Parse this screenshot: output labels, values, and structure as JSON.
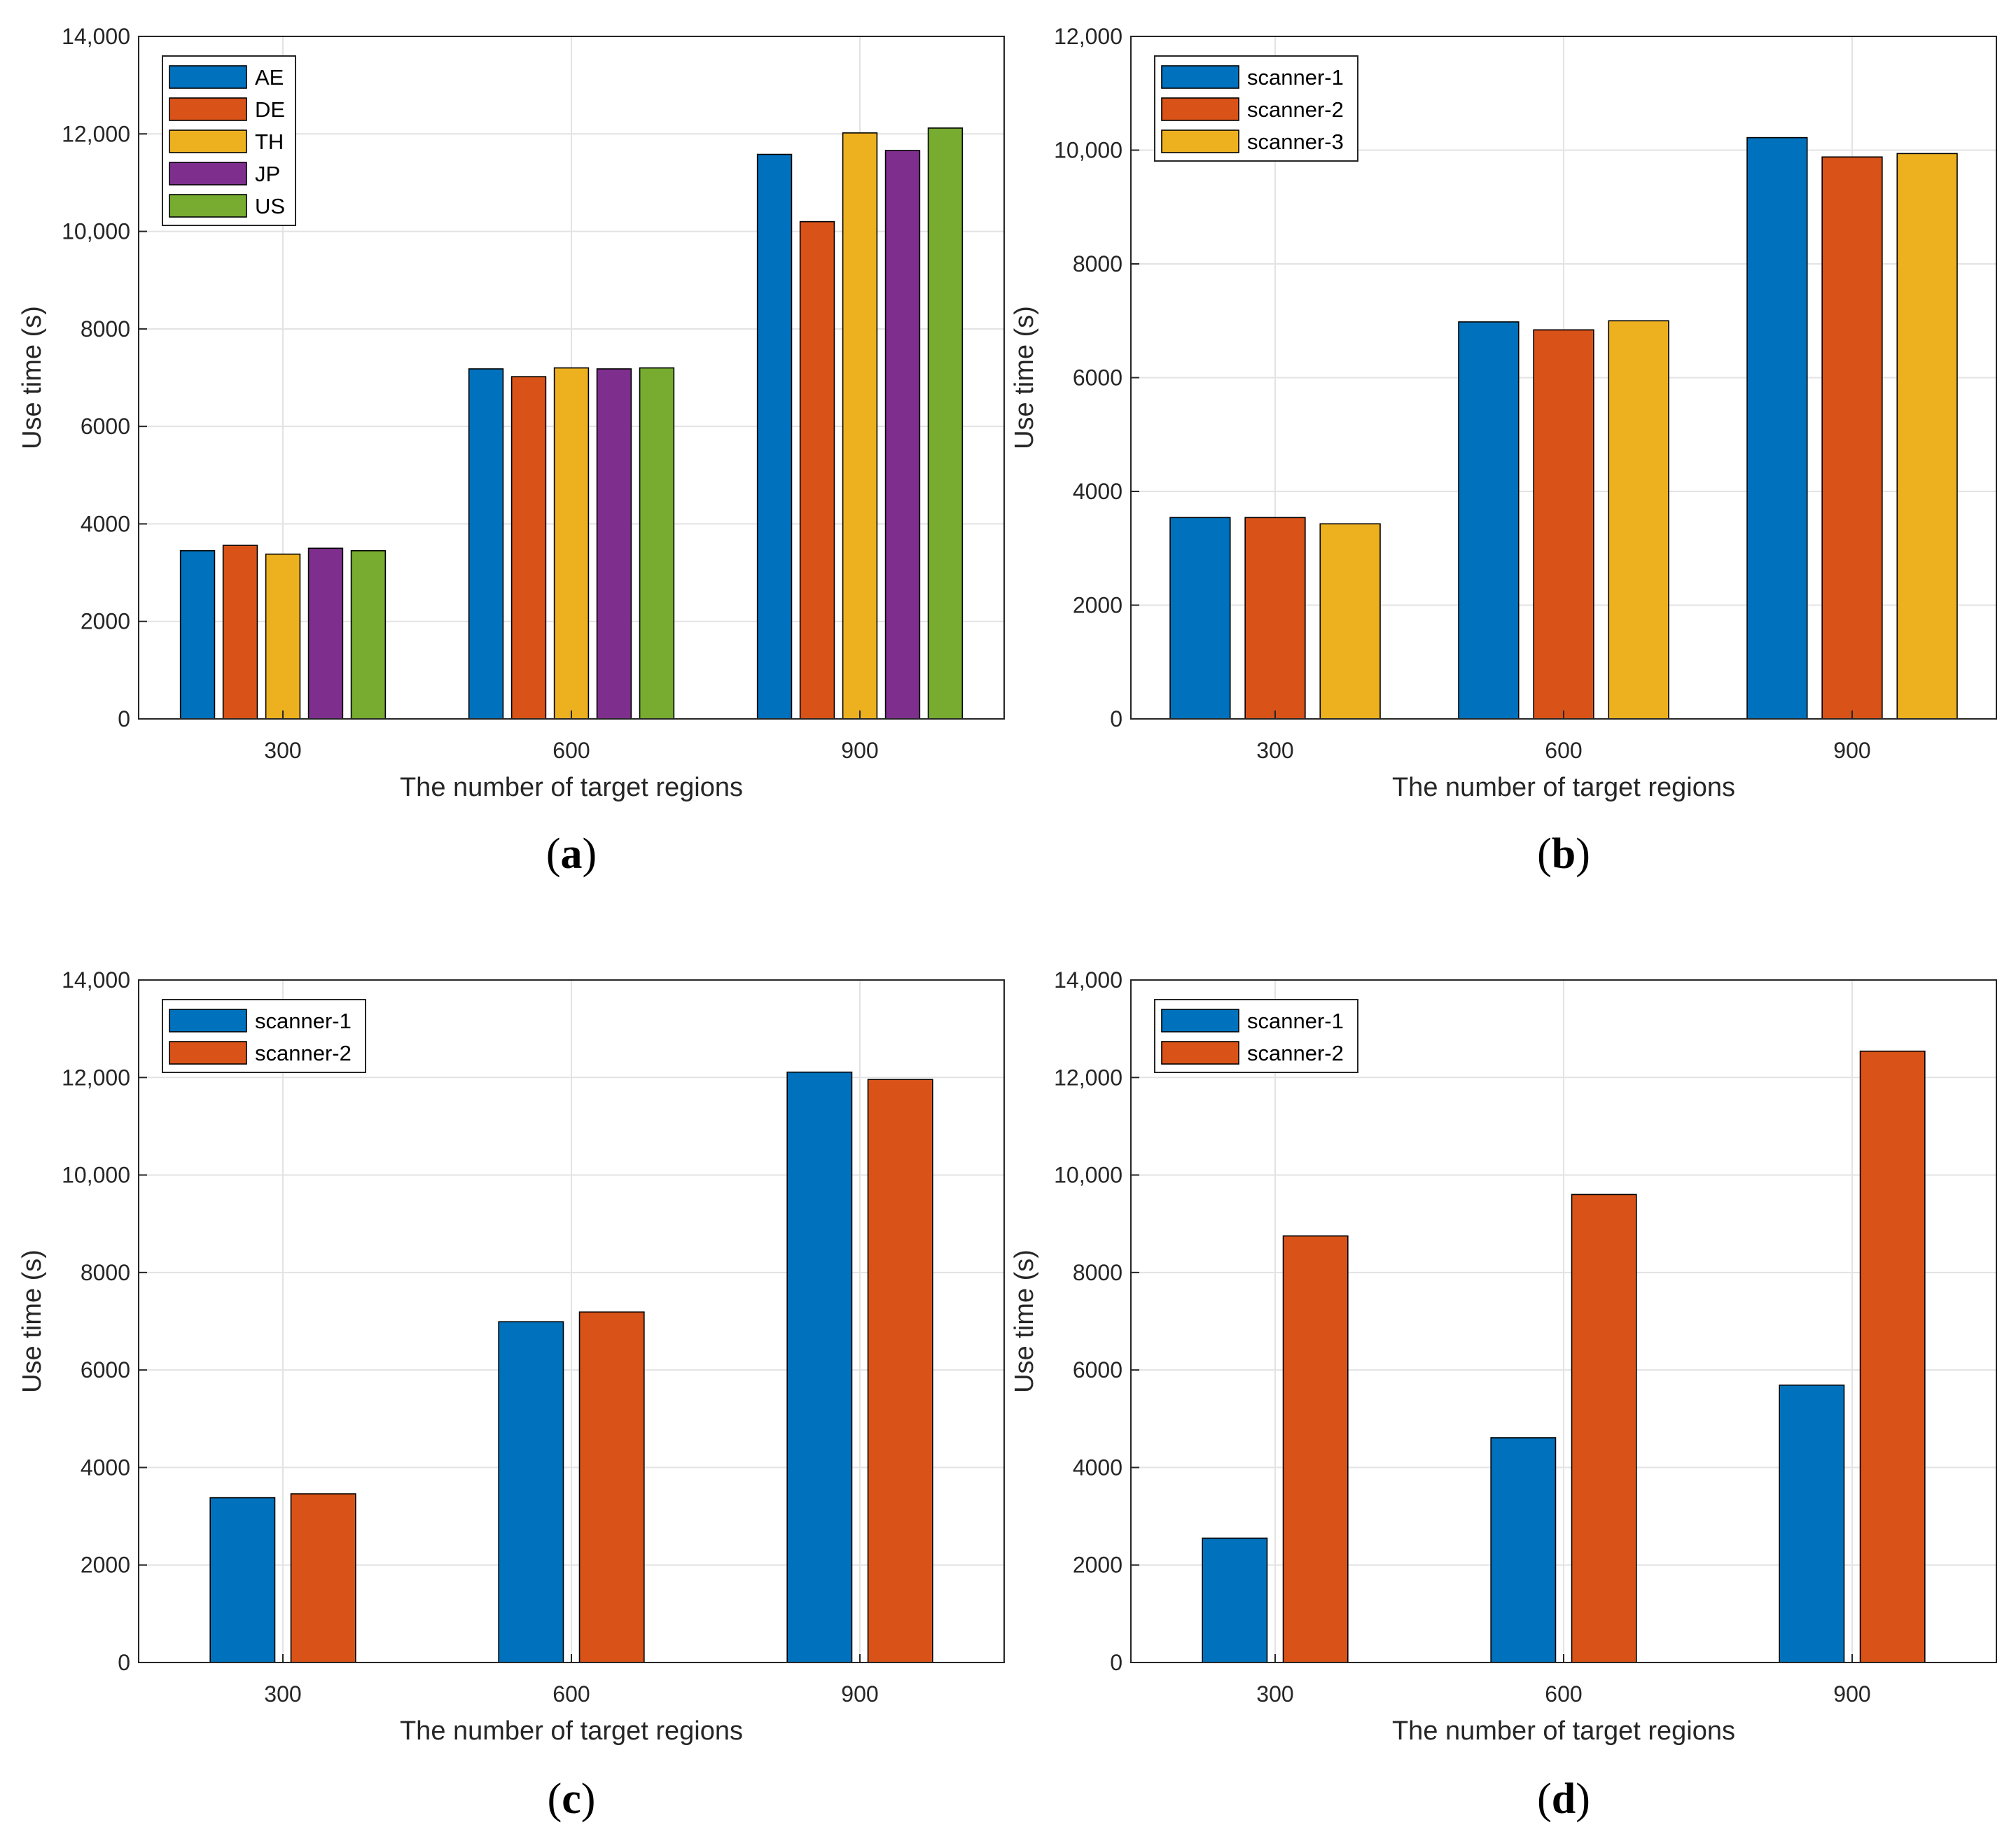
{
  "colors": {
    "series": [
      "#0072BD",
      "#D95319",
      "#EDB120",
      "#7E2F8E",
      "#77AC30"
    ],
    "grid": "#e3e3e3",
    "axis": "#262626",
    "bar_edge": "#000000"
  },
  "chart_data": [
    {
      "type": "bar",
      "panel": "(a)",
      "caption_letter": "a",
      "categories": [
        "300",
        "600",
        "900"
      ],
      "series": [
        {
          "name": "AE",
          "values": [
            3450,
            7180,
            11580
          ]
        },
        {
          "name": "DE",
          "values": [
            3560,
            7020,
            10200
          ]
        },
        {
          "name": "TH",
          "values": [
            3380,
            7200,
            12020
          ]
        },
        {
          "name": "JP",
          "values": [
            3500,
            7180,
            11660
          ]
        },
        {
          "name": "US",
          "values": [
            3450,
            7200,
            12120
          ]
        }
      ],
      "xlabel": "The number of target regions",
      "ylabel": "Use time (s)",
      "ylim": [
        0,
        14000
      ],
      "yticks": [
        0,
        2000,
        4000,
        6000,
        8000,
        10000,
        12000,
        14000
      ],
      "ytick_labels": [
        "0",
        "2000",
        "4000",
        "6000",
        "8000",
        "10,000",
        "12,000",
        "14,000"
      ],
      "grid": true,
      "legend_position": "top-left"
    },
    {
      "type": "bar",
      "panel": "(b)",
      "caption_letter": "b",
      "categories": [
        "300",
        "600",
        "900"
      ],
      "series": [
        {
          "name": "scanner-1",
          "values": [
            3540,
            6980,
            10220
          ]
        },
        {
          "name": "scanner-2",
          "values": [
            3540,
            6840,
            9880
          ]
        },
        {
          "name": "scanner-3",
          "values": [
            3430,
            7000,
            9940
          ]
        }
      ],
      "xlabel": "The number of target regions",
      "ylabel": "Use time (s)",
      "ylim": [
        0,
        12000
      ],
      "yticks": [
        0,
        2000,
        4000,
        6000,
        8000,
        10000,
        12000
      ],
      "ytick_labels": [
        "0",
        "2000",
        "4000",
        "6000",
        "8000",
        "10,000",
        "12,000"
      ],
      "grid": true,
      "legend_position": "top-left"
    },
    {
      "type": "bar",
      "panel": "(c)",
      "caption_letter": "c",
      "categories": [
        "300",
        "600",
        "900"
      ],
      "series": [
        {
          "name": "scanner-1",
          "values": [
            3380,
            6990,
            12110
          ]
        },
        {
          "name": "scanner-2",
          "values": [
            3460,
            7190,
            11960
          ]
        }
      ],
      "xlabel": "The number of target regions",
      "ylabel": "Use time (s)",
      "ylim": [
        0,
        14000
      ],
      "yticks": [
        0,
        2000,
        4000,
        6000,
        8000,
        10000,
        12000,
        14000
      ],
      "ytick_labels": [
        "0",
        "2000",
        "4000",
        "6000",
        "8000",
        "10,000",
        "12,000",
        "14,000"
      ],
      "grid": true,
      "legend_position": "top-left"
    },
    {
      "type": "bar",
      "panel": "(d)",
      "caption_letter": "d",
      "categories": [
        "300",
        "600",
        "900"
      ],
      "series": [
        {
          "name": "scanner-1",
          "values": [
            2550,
            4610,
            5690
          ]
        },
        {
          "name": "scanner-2",
          "values": [
            8750,
            9600,
            12540
          ]
        }
      ],
      "xlabel": "The number of target regions",
      "ylabel": "Use time (s)",
      "ylim": [
        0,
        14000
      ],
      "yticks": [
        0,
        2000,
        4000,
        6000,
        8000,
        10000,
        12000,
        14000
      ],
      "ytick_labels": [
        "0",
        "2000",
        "4000",
        "6000",
        "8000",
        "10,000",
        "12,000",
        "14,000"
      ],
      "grid": true,
      "legend_position": "top-left"
    }
  ]
}
